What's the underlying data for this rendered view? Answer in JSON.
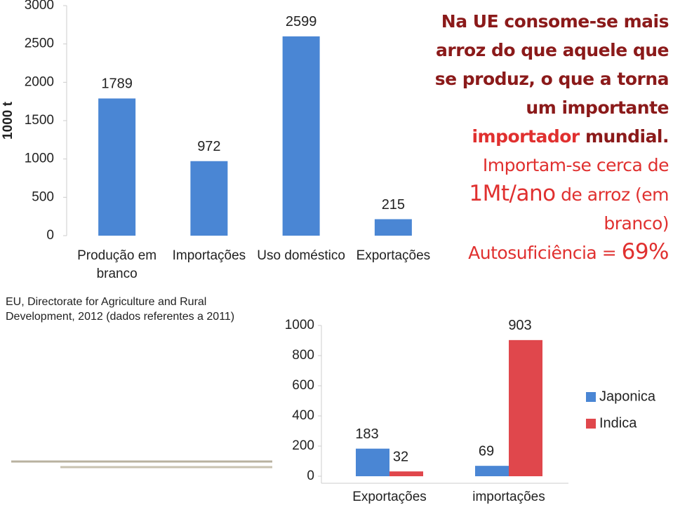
{
  "chart_data": [
    {
      "type": "bar",
      "y_label": "1000 t",
      "categories": [
        "Produção em branco",
        "Importações",
        "Uso doméstico",
        "Exportações"
      ],
      "values": [
        1789,
        972,
        2599,
        215
      ],
      "color": "#4a86d4",
      "ylim": [
        0,
        3000
      ],
      "yticks": [
        0,
        500,
        1000,
        1500,
        2000,
        2500,
        3000
      ],
      "grid": false
    },
    {
      "type": "bar",
      "categories": [
        "Exportações",
        "importações"
      ],
      "series": [
        {
          "name": "Japonica",
          "color": "#4a86d4",
          "values": [
            183,
            69
          ]
        },
        {
          "name": "Indica",
          "color": "#e0474c",
          "values": [
            32,
            903
          ]
        }
      ],
      "ylim": [
        0,
        1000
      ],
      "yticks": [
        0,
        200,
        400,
        600,
        800,
        1000
      ],
      "grid": false,
      "legend": "right"
    }
  ],
  "text_block": [
    [
      "Na UE consome-se mais"
    ],
    [
      "arroz do que aquele que"
    ],
    [
      "se produz, o que a torna"
    ],
    [
      "um importante"
    ],
    [
      "importador",
      "mundial."
    ],
    [
      "Importam-se cerca de"
    ],
    [
      "1Mt/ano",
      "de arroz (em"
    ],
    [
      "branco)"
    ],
    [
      "Autosuficiência =",
      "69%"
    ]
  ],
  "source": "EU, Directorate for Agriculture and Rural Development, 2012 (dados referentes a 2011)"
}
